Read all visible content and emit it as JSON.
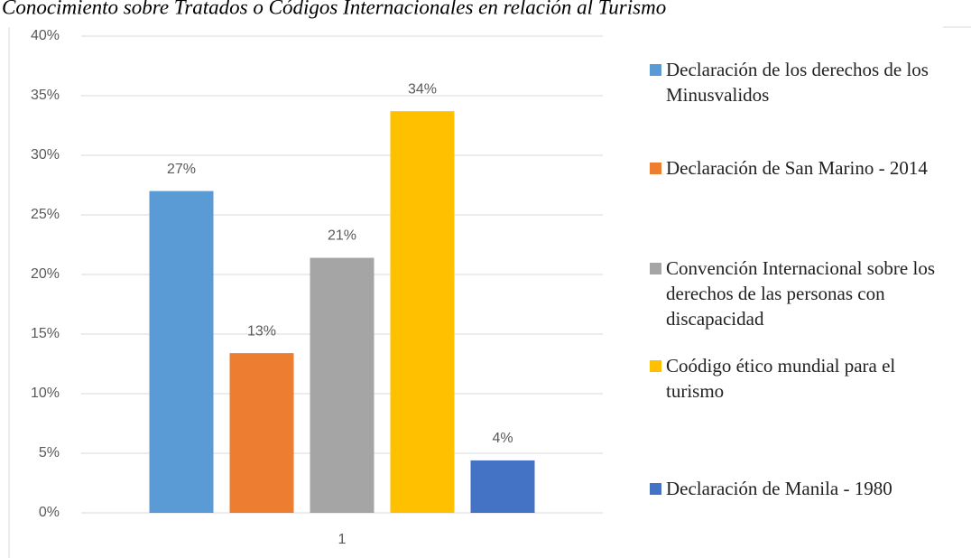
{
  "chart_data": {
    "type": "bar",
    "title": "Conocimiento sobre Tratados o Códigos Internacionales en relación al Turismo",
    "categories": [
      "1"
    ],
    "series": [
      {
        "name": "Declaración de los derechos de los Minusvalidos",
        "color": "#5b9bd5",
        "values": [
          27.0
        ],
        "value_labels": [
          "27%"
        ]
      },
      {
        "name": "Declaración de San Marino - 2014",
        "color": "#ed7d31",
        "values": [
          13.4
        ],
        "value_labels": [
          "13%"
        ]
      },
      {
        "name": "Convención Internacional sobre los derechos de las personas con discapacidad",
        "color": "#a5a5a5",
        "values": [
          21.4
        ],
        "value_labels": [
          "21%"
        ]
      },
      {
        "name": "Coódigo ético mundial para el turismo",
        "color": "#ffc000",
        "values": [
          33.7
        ],
        "value_labels": [
          "34%"
        ]
      },
      {
        "name": "Declaración de Manila - 1980",
        "color": "#4472c4",
        "values": [
          4.4
        ],
        "value_labels": [
          "4%"
        ]
      }
    ],
    "ylim": [
      0,
      40
    ],
    "yticks": [
      {
        "value": 0,
        "label": "0%"
      },
      {
        "value": 5,
        "label": "5%"
      },
      {
        "value": 10,
        "label": "10%"
      },
      {
        "value": 15,
        "label": "15%"
      },
      {
        "value": 20,
        "label": "20%"
      },
      {
        "value": 25,
        "label": "25%"
      },
      {
        "value": 30,
        "label": "30%"
      },
      {
        "value": 35,
        "label": "35%"
      },
      {
        "value": 40,
        "label": "40%"
      }
    ],
    "grid": true,
    "legend": "right"
  }
}
